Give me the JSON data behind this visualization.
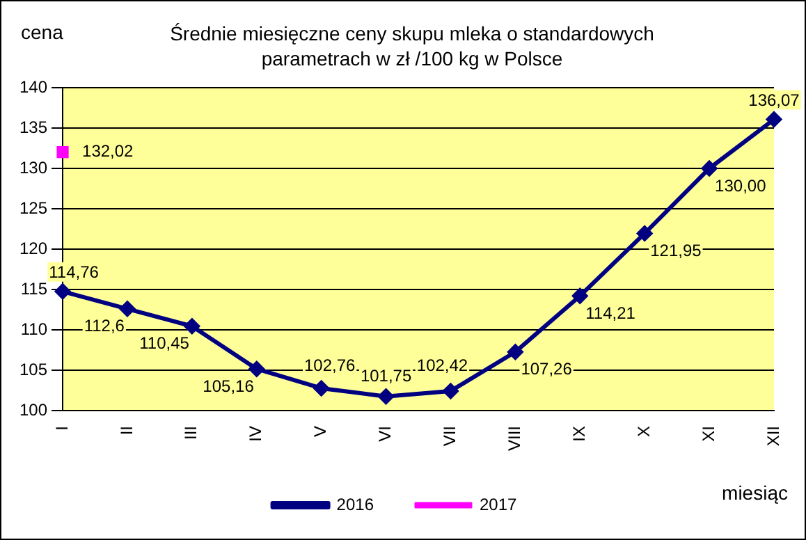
{
  "chart_data": {
    "type": "line",
    "title": "Średnie miesięczne ceny skupu mleka o standardowych parametrach w zł /100 kg w Polsce",
    "ylabel": "cena",
    "xlabel": "miesiąc",
    "categories": [
      "I",
      "II",
      "III",
      "IV",
      "V",
      "VI",
      "VII",
      "VIII",
      "IX",
      "X",
      "XI",
      "XII"
    ],
    "series": [
      {
        "name": "2016",
        "color": "#000080",
        "marker": "diamond",
        "values": [
          114.76,
          112.6,
          110.45,
          105.16,
          102.76,
          101.75,
          102.42,
          107.26,
          114.21,
          121.95,
          130.0,
          136.07
        ],
        "value_labels": [
          "114,76",
          "112,6",
          "110,45",
          "105,16",
          "102,76",
          "101,75",
          "102,42",
          "107,26",
          "114,21",
          "121,95",
          "130,00",
          "136,07"
        ]
      },
      {
        "name": "2017",
        "color": "#ff00ff",
        "marker": "square",
        "values": [
          132.02,
          null,
          null,
          null,
          null,
          null,
          null,
          null,
          null,
          null,
          null,
          null
        ],
        "value_labels": [
          "132,02",
          null,
          null,
          null,
          null,
          null,
          null,
          null,
          null,
          null,
          null,
          null
        ]
      }
    ],
    "ylim": [
      100,
      140
    ],
    "yticks": [
      100,
      105,
      110,
      115,
      120,
      125,
      130,
      135,
      140
    ],
    "grid": "y",
    "legend": "bottom"
  }
}
